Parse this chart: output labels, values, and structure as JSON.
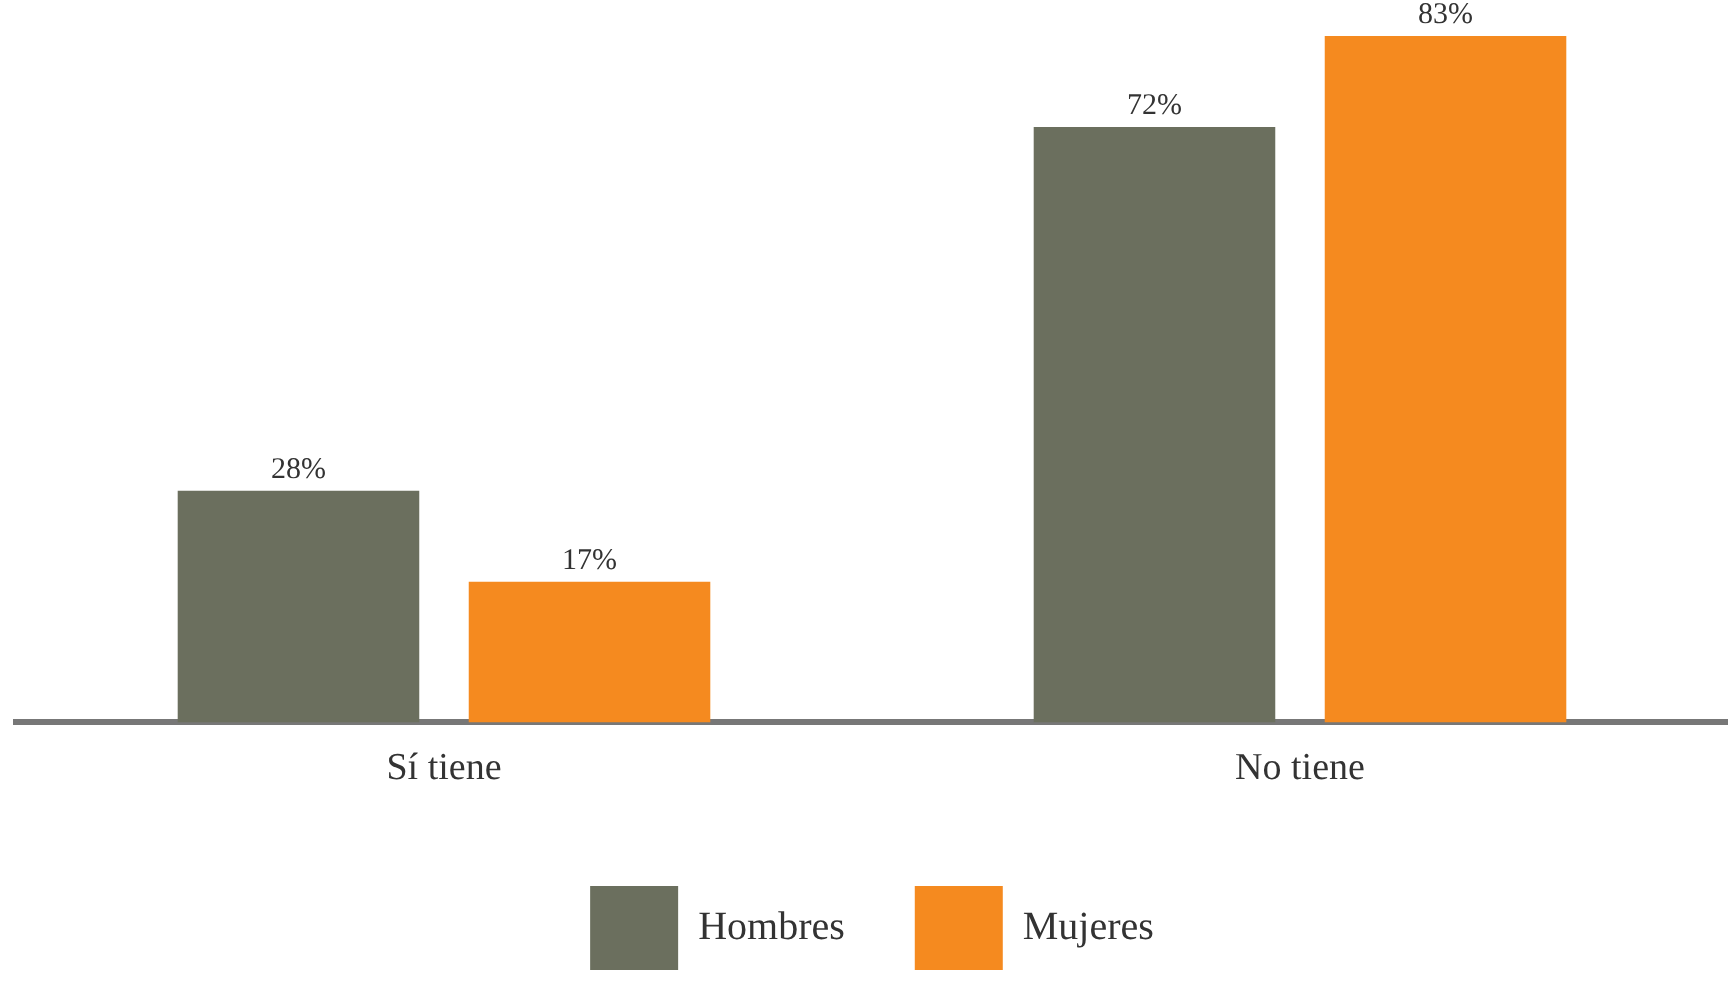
{
  "chart_data": {
    "type": "bar",
    "categories": [
      "Sí tiene",
      "No tiene"
    ],
    "series": [
      {
        "name": "Hombres",
        "color": "#6b6f5e",
        "values": [
          28,
          72
        ],
        "value_labels": [
          "28%",
          "72%"
        ]
      },
      {
        "name": "Mujeres",
        "color": "#f58a1f",
        "values": [
          17,
          83
        ],
        "value_labels": [
          "17%",
          "83%"
        ]
      }
    ],
    "grid": false,
    "legend": "bottom"
  }
}
